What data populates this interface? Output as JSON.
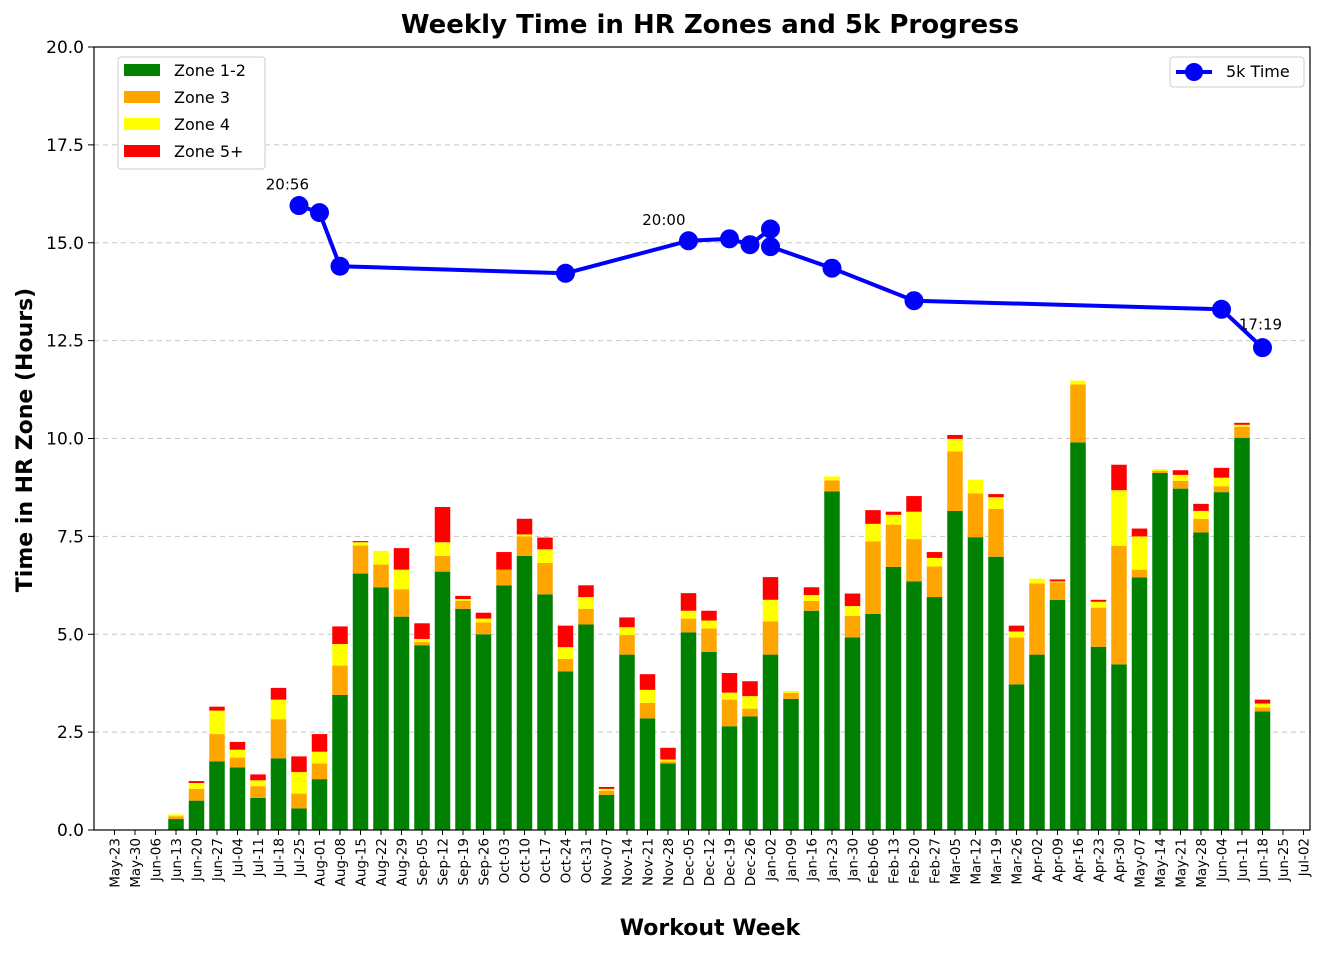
{
  "chart_data": {
    "type": "bar",
    "title": "Weekly Time in HR Zones and 5k Progress",
    "xlabel": "Workout Week",
    "ylabel": "Time in HR Zone (Hours)",
    "ylim": [
      0,
      20
    ],
    "yticks": [
      "0.0",
      "2.5",
      "5.0",
      "7.5",
      "10.0",
      "12.5",
      "15.0",
      "17.5",
      "20.0"
    ],
    "grid": "horizontal dashed",
    "stacked": true,
    "legend_position": "top-left",
    "line_legend_position": "top-right",
    "categories": [
      "May-23",
      "May-30",
      "Jun-06",
      "Jun-13",
      "Jun-20",
      "Jun-27",
      "Jul-04",
      "Jul-11",
      "Jul-18",
      "Jul-25",
      "Aug-01",
      "Aug-08",
      "Aug-15",
      "Aug-22",
      "Aug-29",
      "Sep-05",
      "Sep-12",
      "Sep-19",
      "Sep-26",
      "Oct-03",
      "Oct-10",
      "Oct-17",
      "Oct-24",
      "Oct-31",
      "Nov-07",
      "Nov-14",
      "Nov-21",
      "Nov-28",
      "Dec-05",
      "Dec-12",
      "Dec-19",
      "Dec-26",
      "Jan-02",
      "Jan-09",
      "Jan-16",
      "Jan-23",
      "Jan-30",
      "Feb-06",
      "Feb-13",
      "Feb-20",
      "Feb-27",
      "Mar-05",
      "Mar-12",
      "Mar-19",
      "Mar-26",
      "Apr-02",
      "Apr-09",
      "Apr-16",
      "Apr-23",
      "Apr-30",
      "May-07",
      "May-14",
      "May-21",
      "May-28",
      "Jun-04",
      "Jun-11",
      "Jun-18",
      "Jun-25",
      "Jul-02"
    ],
    "series": [
      {
        "name": "Zone 1-2",
        "color": "#008000",
        "values": [
          0,
          0,
          0,
          0.28,
          0.75,
          1.75,
          1.6,
          0.82,
          1.83,
          0.55,
          1.3,
          3.45,
          6.55,
          6.2,
          5.45,
          4.72,
          6.6,
          5.65,
          5.0,
          6.25,
          7.0,
          6.02,
          4.05,
          5.25,
          0.9,
          4.48,
          2.85,
          1.7,
          5.05,
          4.55,
          2.65,
          2.9,
          4.48,
          3.35,
          5.6,
          8.65,
          4.92,
          5.52,
          6.72,
          6.35,
          5.95,
          8.15,
          7.48,
          6.98,
          3.72,
          4.48,
          5.88,
          9.9,
          4.68,
          4.23,
          6.45,
          9.12,
          8.72,
          7.6,
          8.63,
          10.02,
          3.03,
          0,
          0
        ]
      },
      {
        "name": "Zone 3",
        "color": "#FFA500",
        "values": [
          0,
          0,
          0,
          0.07,
          0.3,
          0.7,
          0.25,
          0.3,
          1.0,
          0.38,
          0.4,
          0.75,
          0.72,
          0.58,
          0.7,
          0.08,
          0.4,
          0.2,
          0.3,
          0.4,
          0.5,
          0.8,
          0.32,
          0.4,
          0.1,
          0.5,
          0.4,
          0.05,
          0.35,
          0.6,
          0.68,
          0.2,
          0.85,
          0.15,
          0.25,
          0.28,
          0.55,
          1.85,
          1.08,
          1.08,
          0.78,
          1.52,
          1.12,
          1.22,
          1.2,
          1.82,
          0.45,
          1.48,
          1.0,
          3.03,
          0.2,
          0.05,
          0.2,
          0.35,
          0.15,
          0.28,
          0.1,
          0,
          0
        ]
      },
      {
        "name": "Zone 4",
        "color": "#FFFF00",
        "values": [
          0,
          0,
          0,
          0.05,
          0.15,
          0.6,
          0.2,
          0.15,
          0.5,
          0.55,
          0.3,
          0.55,
          0.08,
          0.35,
          0.5,
          0.08,
          0.35,
          0.05,
          0.1,
          0,
          0.05,
          0.35,
          0.3,
          0.3,
          0.05,
          0.2,
          0.33,
          0.05,
          0.2,
          0.2,
          0.18,
          0.32,
          0.55,
          0.05,
          0.15,
          0.1,
          0.25,
          0.45,
          0.25,
          0.7,
          0.22,
          0.32,
          0.35,
          0.3,
          0.15,
          0.12,
          0.02,
          0.1,
          0.15,
          1.42,
          0.85,
          0.05,
          0.15,
          0.2,
          0.22,
          0.05,
          0.1,
          0,
          0
        ]
      },
      {
        "name": "Zone 5+",
        "color": "#FF0000",
        "values": [
          0,
          0,
          0,
          0,
          0.05,
          0.1,
          0.2,
          0.15,
          0.3,
          0.4,
          0.45,
          0.45,
          0.03,
          0,
          0.55,
          0.4,
          0.9,
          0.08,
          0.15,
          0.45,
          0.4,
          0.3,
          0.55,
          0.3,
          0.05,
          0.25,
          0.4,
          0.3,
          0.45,
          0.25,
          0.5,
          0.38,
          0.58,
          0,
          0.2,
          0,
          0.32,
          0.35,
          0.08,
          0.4,
          0.15,
          0.1,
          0,
          0.08,
          0.15,
          0,
          0.05,
          0,
          0.05,
          0.65,
          0.2,
          0,
          0.12,
          0.18,
          0.25,
          0.05,
          0.1,
          0,
          0
        ]
      }
    ],
    "line": {
      "name": "5k Time",
      "color": "#0000FF",
      "points": [
        {
          "x": "Jul-25",
          "y": 15.95
        },
        {
          "x": "Aug-01",
          "y": 15.77
        },
        {
          "x": "Aug-08",
          "y": 14.4
        },
        {
          "x": "Oct-24",
          "y": 14.22
        },
        {
          "x": "Dec-05",
          "y": 15.05
        },
        {
          "x": "Dec-19",
          "y": 15.1
        },
        {
          "x": "Dec-26",
          "y": 14.95
        },
        {
          "x": "Jan-02",
          "y": 15.35
        },
        {
          "x": "Jan-02",
          "y": 14.9
        },
        {
          "x": "Jan-23",
          "y": 14.35
        },
        {
          "x": "Feb-20",
          "y": 13.52
        },
        {
          "x": "Jun-04",
          "y": 13.3
        },
        {
          "x": "Jun-18",
          "y": 12.32
        }
      ]
    },
    "annotations": [
      {
        "text": "20:56",
        "x": "Jul-25",
        "y": 15.95
      },
      {
        "text": "20:00",
        "x": "Dec-05",
        "y": 15.05
      },
      {
        "text": "17:19",
        "x": "Jun-18",
        "y": 12.32
      }
    ]
  }
}
